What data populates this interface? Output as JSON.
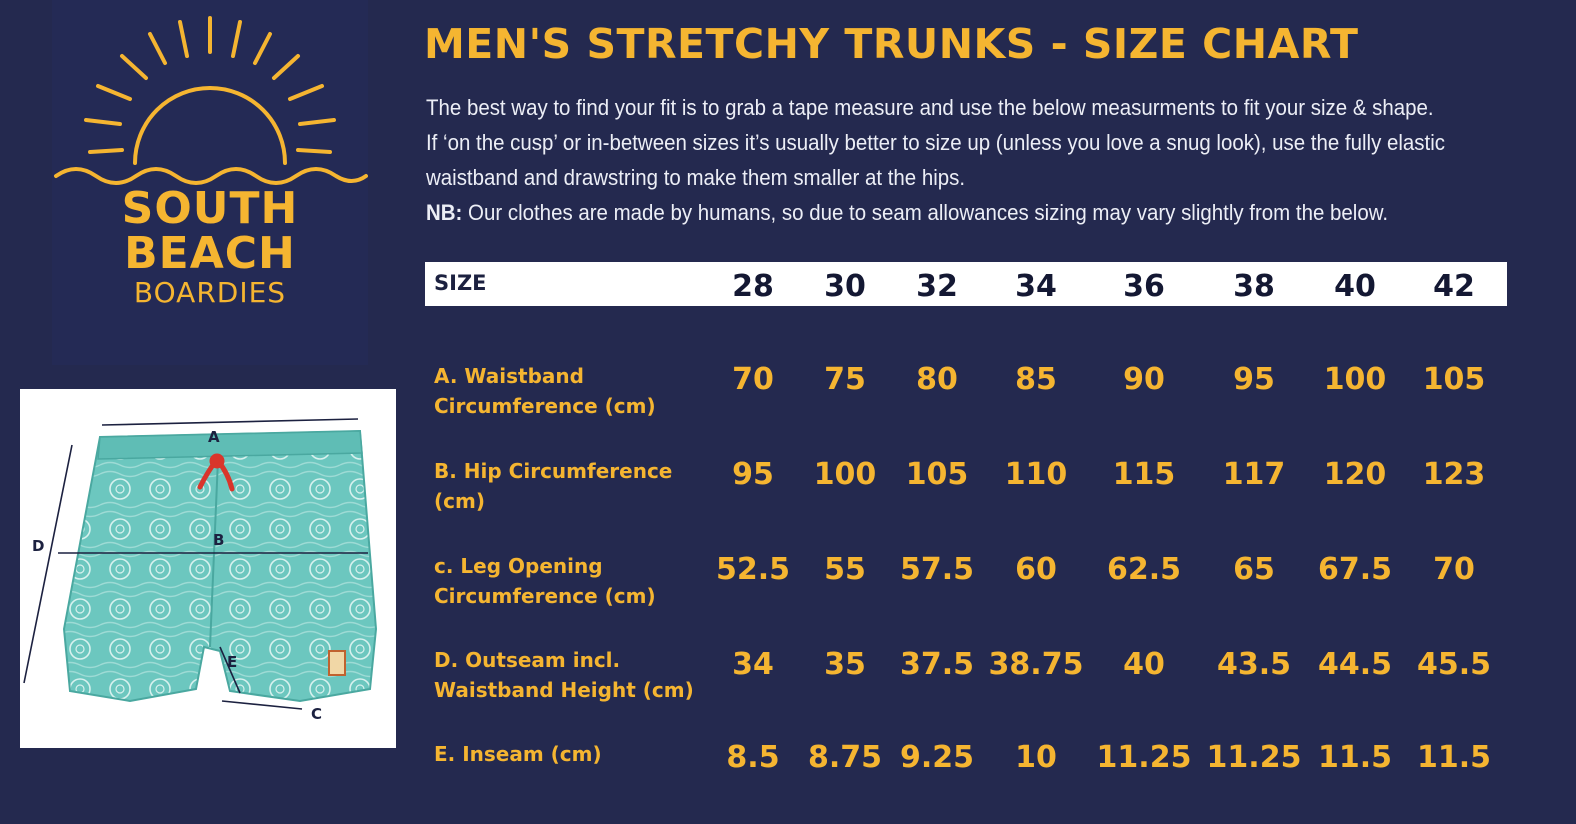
{
  "brand": {
    "line1": "SOUTH",
    "line2": "BEACH",
    "line3": "BOARDIES"
  },
  "colors": {
    "background": "#24294f",
    "accent": "#f5b531",
    "text": "#eceef6",
    "shorts": "#6cc7bf",
    "drawstring": "#d9352b"
  },
  "title": "MEN'S STRETCHY TRUNKS - SIZE CHART",
  "intro": {
    "line1": "The best way to find your fit is to grab a tape measure and use the below measurments to fit your size & shape.",
    "line2": "If ‘on the cusp’ or in-between sizes it’s usually better to size up (unless you love a snug look), use the fully elastic",
    "line3": "waistband and drawstring to make them smaller at the hips.",
    "nb_label": "NB:",
    "nb_text": " Our clothes are made by humans, so due to seam allowances sizing may vary slightly from the below."
  },
  "diagram": {
    "labels": [
      "A",
      "B",
      "C",
      "D",
      "E"
    ]
  },
  "table": {
    "size_label": "SIZE",
    "sizes": [
      "28",
      "30",
      "32",
      "34",
      "36",
      "38",
      "40",
      "42"
    ],
    "rows": [
      {
        "label_line1": "A. Waistband",
        "label_line2": "Circumference (cm)",
        "values": [
          "70",
          "75",
          "80",
          "85",
          "90",
          "95",
          "100",
          "105"
        ]
      },
      {
        "label_line1": "B. Hip Circumference",
        "label_line2": "(cm)",
        "values": [
          "95",
          "100",
          "105",
          "110",
          "115",
          "117",
          "120",
          "123"
        ]
      },
      {
        "label_line1": "c. Leg Opening",
        "label_line2": "Circumference (cm)",
        "values": [
          "52.5",
          "55",
          "57.5",
          "60",
          "62.5",
          "65",
          "67.5",
          "70"
        ]
      },
      {
        "label_line1": "D. Outseam incl.",
        "label_line2": "Waistband Height (cm)",
        "values": [
          "34",
          "35",
          "37.5",
          "38.75",
          "40",
          "43.5",
          "44.5",
          "45.5"
        ]
      },
      {
        "label_line1": "E. Inseam (cm)",
        "label_line2": "",
        "values": [
          "8.5",
          "8.75",
          "9.25",
          "10",
          "11.25",
          "11.25",
          "11.5",
          "11.5"
        ]
      }
    ]
  }
}
